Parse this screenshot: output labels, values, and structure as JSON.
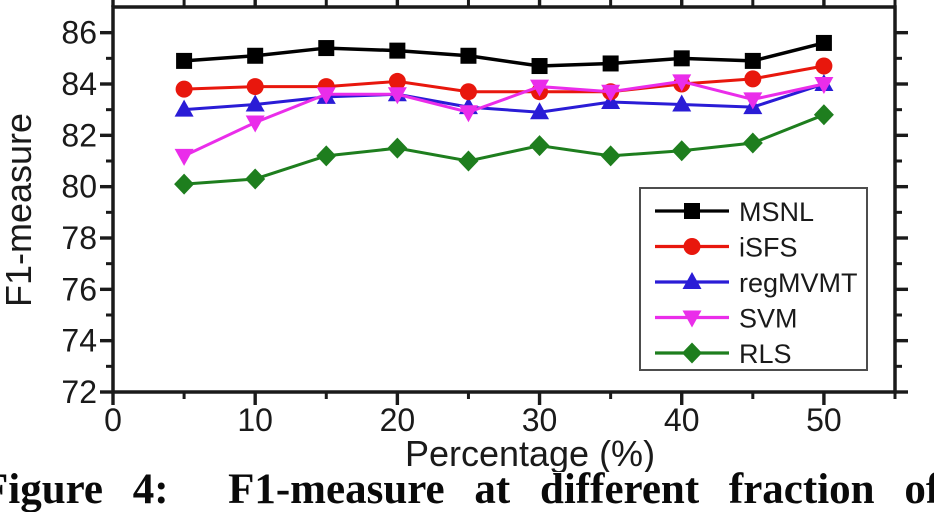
{
  "chart_data": {
    "type": "line",
    "title": "",
    "xlabel": "Percentage (%)",
    "ylabel": "F1-measure",
    "x": [
      5,
      10,
      15,
      20,
      25,
      30,
      35,
      40,
      45,
      50
    ],
    "series": [
      {
        "name": "MSNL",
        "color": "#000000",
        "marker": "square",
        "values": [
          84.9,
          85.1,
          85.4,
          85.3,
          85.1,
          84.7,
          84.8,
          85.0,
          84.9,
          85.6
        ]
      },
      {
        "name": "iSFS",
        "color": "#e8170d",
        "marker": "circle",
        "values": [
          83.8,
          83.9,
          83.9,
          84.1,
          83.7,
          83.7,
          83.7,
          84.0,
          84.2,
          84.7
        ]
      },
      {
        "name": "regMVMT",
        "color": "#2a1cd6",
        "marker": "triangle-up",
        "values": [
          83.0,
          83.2,
          83.5,
          83.6,
          83.1,
          82.9,
          83.3,
          83.2,
          83.1,
          84.0
        ]
      },
      {
        "name": "SVM",
        "color": "#ea2dea",
        "marker": "triangle-down",
        "values": [
          81.2,
          82.5,
          83.6,
          83.6,
          82.9,
          83.9,
          83.7,
          84.1,
          83.4,
          84.0
        ]
      },
      {
        "name": "RLS",
        "color": "#1e7e1e",
        "marker": "diamond",
        "values": [
          80.1,
          80.3,
          81.2,
          81.5,
          81.0,
          81.6,
          81.2,
          81.4,
          81.7,
          82.8
        ]
      }
    ],
    "xlim": [
      0,
      55
    ],
    "ylim": [
      72,
      87
    ],
    "xticks": [
      0,
      10,
      20,
      30,
      40,
      50
    ],
    "xticks_minor": [
      5,
      15,
      25,
      35,
      45,
      55
    ],
    "yticks": [
      72,
      74,
      76,
      78,
      80,
      82,
      84,
      86
    ],
    "yticks_minor": [
      73,
      75,
      77,
      79,
      81,
      83,
      85
    ],
    "grid": false,
    "legend_position": "bottom-right",
    "axis_color": "#1a1a1a"
  },
  "caption": {
    "text": "Figure 4:  F1-measure at different fraction of"
  }
}
